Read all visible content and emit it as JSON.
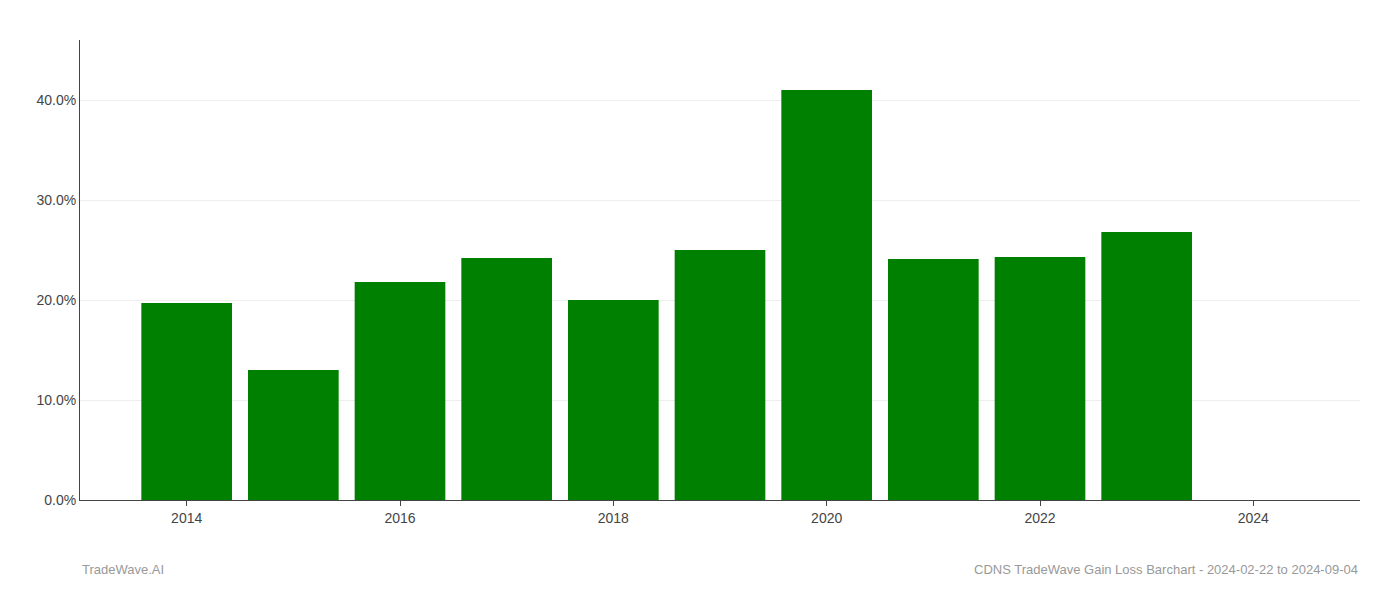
{
  "chart_data": {
    "type": "bar",
    "x": [
      2014,
      2015,
      2016,
      2017,
      2018,
      2019,
      2020,
      2021,
      2022,
      2023
    ],
    "values": [
      0.197,
      0.13,
      0.218,
      0.242,
      0.2,
      0.25,
      0.41,
      0.241,
      0.243,
      0.268
    ],
    "color": "#008000",
    "xlim": [
      2013.0,
      2025.0
    ],
    "xticks": [
      2014,
      2016,
      2018,
      2020,
      2022,
      2024
    ],
    "ylim": [
      0,
      0.46
    ],
    "yticks": [
      {
        "value": 0.0,
        "label": "0.0%"
      },
      {
        "value": 0.1,
        "label": "10.0%"
      },
      {
        "value": 0.2,
        "label": "20.0%"
      },
      {
        "value": 0.3,
        "label": "30.0%"
      },
      {
        "value": 0.4,
        "label": "40.0%"
      }
    ],
    "grid": true,
    "annotations": [
      "TradeWave.AI",
      "CDNS TradeWave Gain Loss Barchart - 2024-02-22 to 2024-09-04"
    ]
  }
}
